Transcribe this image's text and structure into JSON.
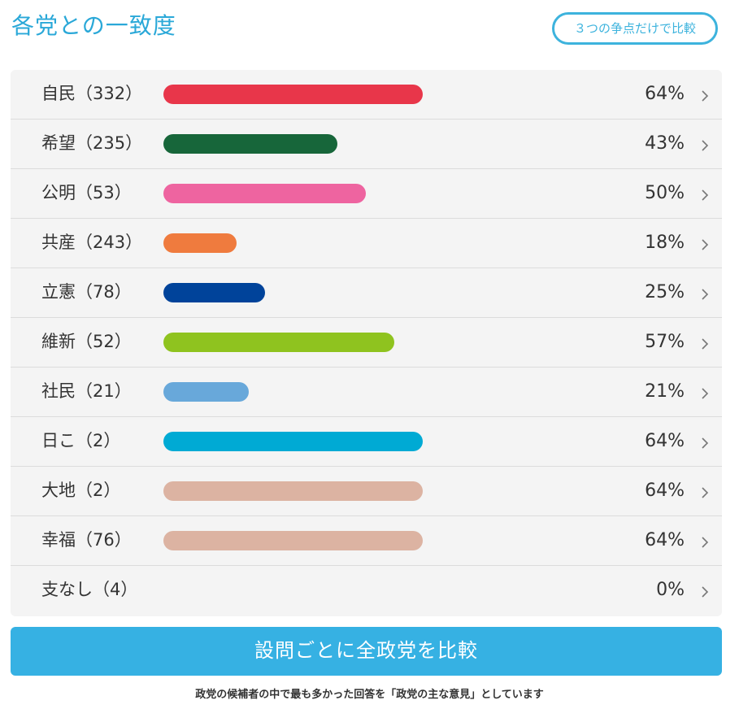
{
  "header": {
    "title": "各党との一致度",
    "compare_three_label": "３つの争点だけで比較"
  },
  "parties": [
    {
      "name": "自民（332）",
      "percent": 64,
      "percent_label": "64%",
      "color": "#e8364a"
    },
    {
      "name": "希望（235）",
      "percent": 43,
      "percent_label": "43%",
      "color": "#17663a"
    },
    {
      "name": "公明（53）",
      "percent": 50,
      "percent_label": "50%",
      "color": "#ee64a0"
    },
    {
      "name": "共産（243）",
      "percent": 18,
      "percent_label": "18%",
      "color": "#ef7b3e"
    },
    {
      "name": "立憲（78）",
      "percent": 25,
      "percent_label": "25%",
      "color": "#00439a"
    },
    {
      "name": "維新（52）",
      "percent": 57,
      "percent_label": "57%",
      "color": "#8fc31f"
    },
    {
      "name": "社民（21）",
      "percent": 21,
      "percent_label": "21%",
      "color": "#68a8da"
    },
    {
      "name": "日こ（2）",
      "percent": 64,
      "percent_label": "64%",
      "color": "#00aad4"
    },
    {
      "name": "大地（2）",
      "percent": 64,
      "percent_label": "64%",
      "color": "#dcb3a2"
    },
    {
      "name": "幸福（76）",
      "percent": 64,
      "percent_label": "64%",
      "color": "#dcb3a2"
    },
    {
      "name": "支なし（4）",
      "percent": 0,
      "percent_label": "0%",
      "color": ""
    }
  ],
  "compare_all_label": "設問ごとに全政党を比較",
  "footnote": "政党の候補者の中で最も多かった回答を「政党の主な意見」としています"
}
